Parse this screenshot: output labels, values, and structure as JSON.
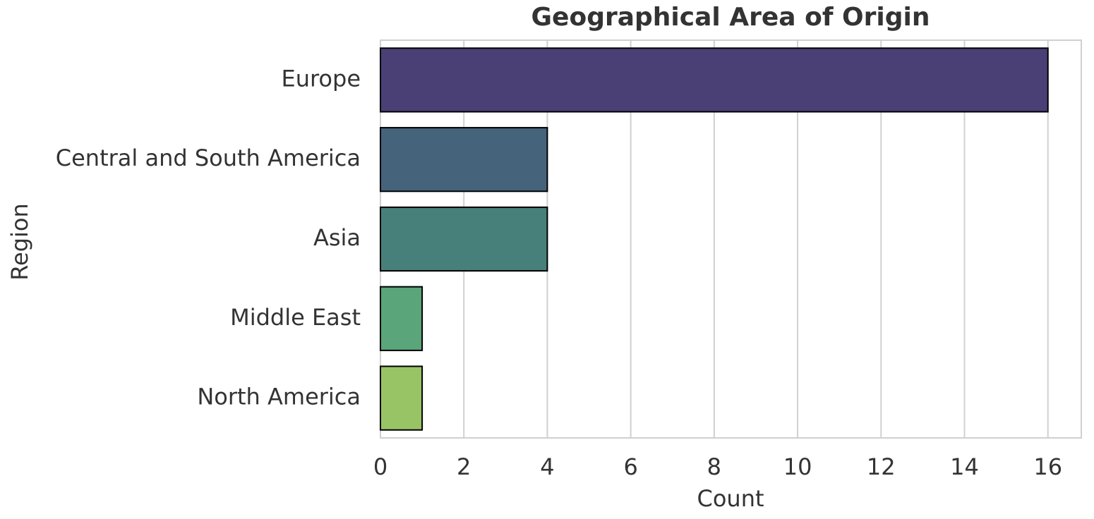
{
  "chart_data": {
    "type": "bar",
    "orientation": "horizontal",
    "title": "Geographical Area of Origin",
    "x_label": "Count",
    "y_label": "Region",
    "categories": [
      "Europe",
      "Central and South America",
      "Asia",
      "Middle East",
      "North America"
    ],
    "values": [
      16,
      4,
      4,
      1,
      1
    ],
    "colors": [
      "#4a4076",
      "#46637c",
      "#47807a",
      "#5aa57a",
      "#98c466"
    ],
    "xlim": [
      0,
      16.8
    ],
    "xticks": [
      0,
      2,
      4,
      6,
      8,
      10,
      12,
      14,
      16
    ],
    "grid": true
  }
}
